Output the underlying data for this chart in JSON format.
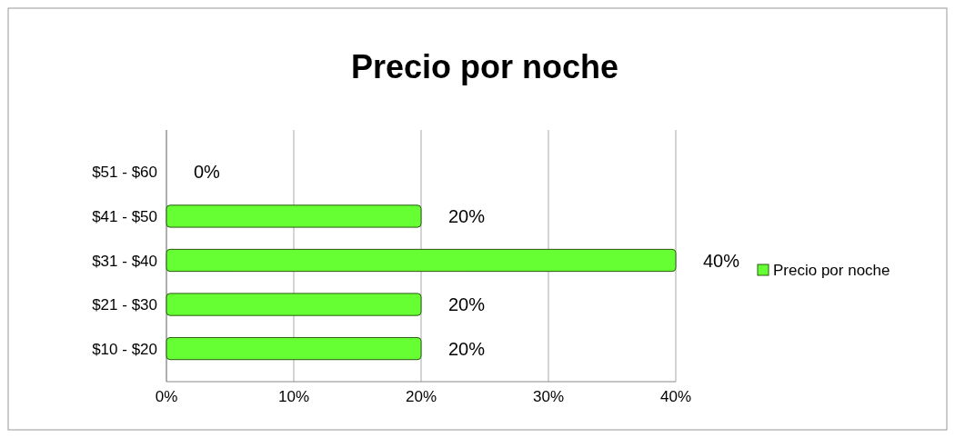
{
  "chart_data": {
    "type": "bar",
    "title": "Precio por noche",
    "orientation": "horizontal",
    "categories": [
      "$51 - $60",
      "$41 - $50",
      "$31 - $40",
      "$21 - $30",
      "$10 - $20"
    ],
    "series": [
      {
        "name": "Precio por noche",
        "color": "#66ff33",
        "values": [
          0,
          20,
          40,
          20,
          20
        ],
        "value_labels": [
          "0%",
          "20%",
          "40%",
          "20%",
          "20%"
        ]
      }
    ],
    "xlim": [
      0,
      40
    ],
    "xticks": [
      {
        "value": 0,
        "label": "0%"
      },
      {
        "value": 10,
        "label": "10%"
      },
      {
        "value": 20,
        "label": "20%"
      },
      {
        "value": 30,
        "label": "30%"
      },
      {
        "value": 40,
        "label": "40%"
      }
    ],
    "grid": "x",
    "legend": "right"
  }
}
